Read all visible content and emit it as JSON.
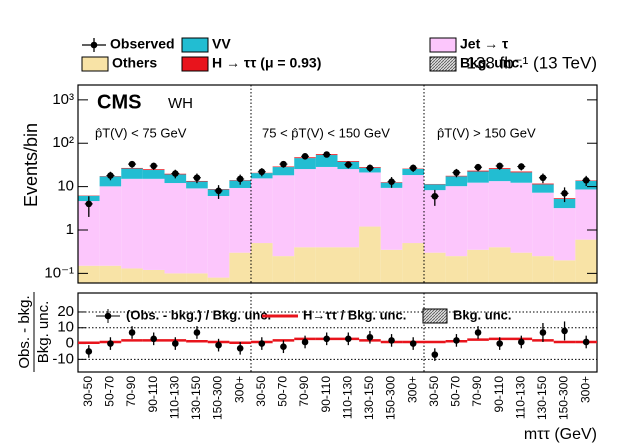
{
  "chart_data": [
    {
      "type": "bar",
      "stacked": true,
      "log_y": true,
      "y_label": "Events/bin",
      "experiment": "CMS",
      "channel": "WH",
      "lumi": "138 fb⁻¹ (13 TeV)",
      "annotations": [
        "p̂T(V) < 75 GeV",
        "75 < p̂T(V) < 150 GeV",
        "p̂T(V) > 150 GeV"
      ],
      "categories": [
        "30-50",
        "50-70",
        "70-90",
        "90-110",
        "110-130",
        "130-150",
        "150-300",
        "300+",
        "30-50",
        "50-70",
        "70-90",
        "90-110",
        "110-130",
        "130-150",
        "150-300",
        "300+",
        "30-50",
        "50-70",
        "70-90",
        "90-110",
        "110-130",
        "130-150",
        "150-300",
        "300+"
      ],
      "series": [
        {
          "name": "Others",
          "color": "#f8e3a6",
          "values": [
            0.15,
            0.15,
            0.13,
            0.12,
            0.1,
            0.1,
            0.08,
            0.3,
            0.5,
            0.25,
            0.4,
            0.4,
            0.4,
            1.2,
            0.35,
            0.5,
            0.3,
            0.25,
            0.35,
            0.4,
            0.3,
            0.25,
            0.2,
            0.6
          ]
        },
        {
          "name": "Jet → τ",
          "color": "#fcc6fc",
          "values": [
            4.5,
            10,
            15,
            15,
            12,
            9,
            6,
            9,
            15,
            18,
            25,
            28,
            25,
            20,
            9,
            18,
            8,
            10,
            12,
            13,
            12,
            7,
            3,
            8
          ]
        },
        {
          "name": "VV",
          "color": "#22bdd2",
          "values": [
            1.5,
            7,
            11,
            9,
            7,
            4,
            2.5,
            4.5,
            5,
            10,
            20,
            25,
            12,
            6,
            3,
            7,
            3,
            7,
            10,
            12,
            9,
            4,
            2,
            5
          ]
        },
        {
          "name": "H → ττ (μ = 0.93)",
          "color": "#e8141c",
          "values": [
            0.1,
            0.3,
            0.8,
            1,
            0.7,
            0.4,
            0.2,
            0.3,
            0.3,
            0.8,
            2,
            2.5,
            1.5,
            1,
            0.3,
            0.5,
            0.2,
            0.5,
            1,
            1.2,
            1,
            0.5,
            0.2,
            0.3
          ]
        }
      ],
      "observed": {
        "name": "Observed",
        "color": "#000000",
        "values": [
          4,
          18,
          33,
          30,
          20,
          16,
          8,
          15,
          22,
          33,
          50,
          55,
          32,
          27,
          13,
          27,
          6,
          21,
          28,
          30,
          29,
          16,
          7,
          14
        ],
        "errors": [
          2,
          4,
          6,
          5.5,
          4.5,
          4,
          2.8,
          3.9,
          4.7,
          5.7,
          7,
          7.4,
          5.7,
          5.2,
          3.6,
          5.2,
          2.4,
          4.6,
          5.3,
          5.5,
          5.4,
          4,
          2.6,
          3.7
        ]
      },
      "uncertainty_label": "Bkg. unc.",
      "ylim": [
        0.06,
        2200
      ],
      "yticks": [
        {
          "value": 0.1,
          "label": "10⁻¹"
        },
        1,
        10,
        {
          "value": 100,
          "label": "10²"
        },
        {
          "value": 1000,
          "label": "10³"
        }
      ]
    },
    {
      "type": "scatter",
      "y_label": [
        "Obs. - bkg.",
        "Bkg. unc."
      ],
      "x_label": "mττ (GeV)",
      "series": [
        {
          "name": "(Obs. - bkg.) / Bkg. unc.",
          "color": "#000000",
          "values": [
            -5,
            0,
            7,
            3,
            0,
            7,
            -1,
            -3,
            0,
            -2,
            1,
            3,
            3,
            4,
            2,
            0,
            -7,
            2,
            7,
            0,
            1,
            7,
            8,
            1
          ],
          "errors": [
            4,
            4,
            4,
            4,
            4,
            4,
            4,
            4,
            4,
            4,
            4,
            4,
            4,
            4,
            4,
            4,
            4,
            4,
            4,
            4,
            4,
            6,
            6,
            4
          ]
        },
        {
          "name": "H→ττ / Bkg. unc.",
          "color": "#e8141c",
          "values": [
            0.5,
            1,
            2,
            2,
            2,
            1.5,
            1,
            0.5,
            1,
            2,
            3,
            3,
            3,
            2,
            1,
            1,
            1,
            1.5,
            2.5,
            3,
            3,
            2,
            1,
            1
          ]
        }
      ],
      "uncertainty_label": "Bkg. unc.",
      "ylim": [
        -18,
        32
      ],
      "yticks": [
        -10,
        0,
        10,
        20
      ]
    }
  ]
}
